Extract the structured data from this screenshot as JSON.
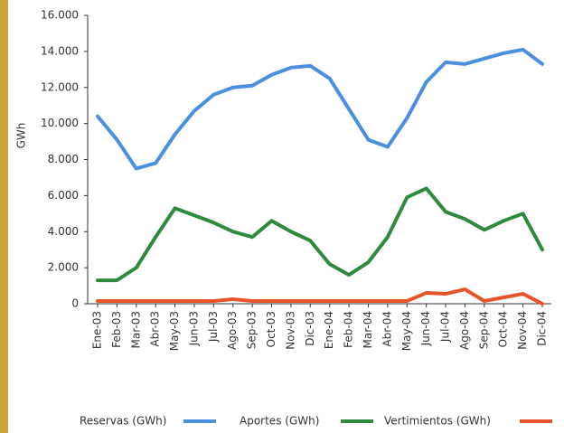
{
  "chart_data": {
    "type": "line",
    "y_label": "GWh",
    "categories": [
      "Ene-03",
      "Feb-03",
      "Mar-03",
      "Abr-03",
      "May-03",
      "Jun-03",
      "Jul-03",
      "Ago-03",
      "Sep-03",
      "Oct-03",
      "Nov-03",
      "Dic-03",
      "Ene-04",
      "Feb-04",
      "Mar-04",
      "Abr-04",
      "May-04",
      "Jun-04",
      "Jul-04",
      "Ago-04",
      "Sep-04",
      "Oct-04",
      "Nov-04",
      "Dic-04"
    ],
    "series": [
      {
        "name": "Reservas (GWh)",
        "color": "#4a8fe0",
        "values": [
          10400,
          9100,
          7500,
          7800,
          9400,
          10700,
          11600,
          12000,
          12100,
          12700,
          13100,
          13200,
          12500,
          10800,
          9100,
          8700,
          10300,
          12300,
          13400,
          13300,
          13600,
          13900,
          14100,
          13300
        ]
      },
      {
        "name": "Aportes (GWh)",
        "color": "#2e8b3e",
        "values": [
          1300,
          1300,
          2000,
          3700,
          5300,
          4900,
          4500,
          4000,
          3700,
          4600,
          4000,
          3500,
          2200,
          1600,
          2300,
          3700,
          5900,
          6400,
          5100,
          4700,
          4100,
          4600,
          5000,
          3000
        ]
      },
      {
        "name": "Vertimientos (GWh)",
        "color": "#e8542a",
        "values": [
          150,
          150,
          150,
          150,
          150,
          150,
          150,
          250,
          150,
          150,
          150,
          150,
          150,
          150,
          150,
          150,
          150,
          600,
          550,
          800,
          150,
          350,
          550,
          0
        ]
      }
    ],
    "ylim": [
      0,
      16000
    ],
    "yticks": [
      0,
      {
        "value": 2000,
        "label": "2.000"
      },
      {
        "value": 4000,
        "label": "4.000"
      },
      {
        "value": 6000,
        "label": "6.000"
      },
      {
        "value": 8000,
        "label": "8.000"
      },
      {
        "value": 10000,
        "label": "10.000"
      },
      {
        "value": 12000,
        "label": "12.000"
      },
      {
        "value": 14000,
        "label": "14.000"
      },
      {
        "value": 16000,
        "label": "16.000"
      }
    ],
    "grid": false
  }
}
